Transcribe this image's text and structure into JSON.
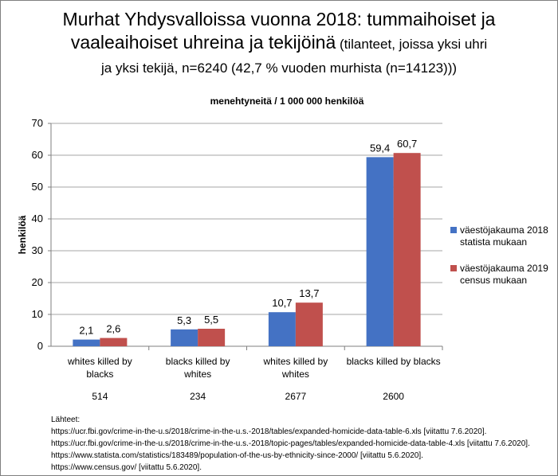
{
  "title": {
    "line1": "Murhat Yhdysvalloissa vuonna 2018: tummaihoiset ja",
    "line2_main": "vaaleaihoiset  uhreina ja tekijöinä",
    "line2_sub": " (tilanteet, joissa yksi uhri",
    "line3": "ja yksi tekijä, n=6240 (42,7 % vuoden murhista (n=14123)))"
  },
  "chart_data": {
    "type": "bar",
    "subtitle": "menehtyneitä / 1 000 000 henkilöä",
    "ylabel": "henkilöä",
    "ylim": [
      0,
      70
    ],
    "yticks": [
      0,
      10,
      20,
      30,
      40,
      50,
      60,
      70
    ],
    "categories": [
      [
        "whites killed by",
        "blacks"
      ],
      [
        "blacks killed by",
        "whites"
      ],
      [
        "whites killed by",
        "whites"
      ],
      [
        "blacks killed by blacks"
      ]
    ],
    "category_counts": [
      "514",
      "234",
      "2677",
      "2600"
    ],
    "series": [
      {
        "name": [
          "väestöjakauma 2018",
          "statista mukaan"
        ],
        "color": "#4472C4",
        "values": [
          2.1,
          5.3,
          10.7,
          59.4
        ],
        "labels": [
          "2,1",
          "5,3",
          "10,7",
          "59,4"
        ]
      },
      {
        "name": [
          "väestöjakauma 2019",
          "census mukaan"
        ],
        "color": "#C0504D",
        "values": [
          2.6,
          5.5,
          13.7,
          60.7
        ],
        "labels": [
          "2,6",
          "5,5",
          "13,7",
          "60,7"
        ]
      }
    ],
    "grid": true,
    "legend": "right"
  },
  "sources": [
    "Lähteet:",
    "https://ucr.fbi.gov/crime-in-the-u.s/2018/crime-in-the-u.s.-2018/tables/expanded-homicide-data-table-6.xls [viitattu 7.6.2020].",
    "https://ucr.fbi.gov/crime-in-the-u.s/2018/crime-in-the-u.s.-2018/topic-pages/tables/expanded-homicide-data-table-4.xls [viitattu 7.6.2020].",
    "https://www.statista.com/statistics/183489/population-of-the-us-by-ethnicity-since-2000/ [viitattu 5.6.2020].",
    "https://www.census.gov/ [viitattu 5.6.2020]."
  ]
}
